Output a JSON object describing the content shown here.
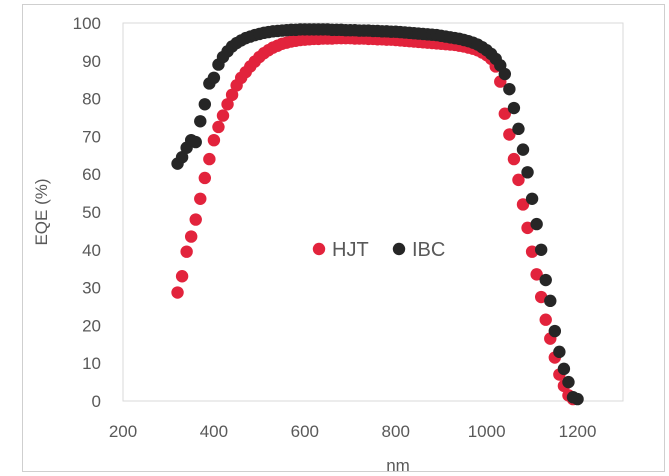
{
  "chart_data": {
    "type": "scatter",
    "title": "",
    "xlabel": "nm",
    "ylabel": "EQE (%)",
    "xlim": [
      200,
      1300
    ],
    "ylim": [
      0,
      100
    ],
    "xticks": [
      "200",
      "400",
      "600",
      "800",
      "1000",
      "1200"
    ],
    "yticks": [
      "0",
      "10",
      "20",
      "30",
      "40",
      "50",
      "60",
      "70",
      "80",
      "90",
      "100"
    ],
    "grid": false,
    "legend_position": "center",
    "series": [
      {
        "name": "HJT",
        "color": "#e2233c",
        "points": [
          [
            320,
            28.7
          ],
          [
            330,
            33
          ],
          [
            340,
            39.5
          ],
          [
            350,
            43.5
          ],
          [
            360,
            48
          ],
          [
            370,
            53.5
          ],
          [
            380,
            59
          ],
          [
            390,
            64
          ],
          [
            400,
            69
          ],
          [
            410,
            72.5
          ],
          [
            420,
            75.5
          ],
          [
            430,
            78.5
          ],
          [
            440,
            81
          ],
          [
            450,
            83.5
          ],
          [
            460,
            85.5
          ],
          [
            470,
            87
          ],
          [
            480,
            88.5
          ],
          [
            490,
            89.8
          ],
          [
            500,
            91
          ],
          [
            510,
            92
          ],
          [
            520,
            92.8
          ],
          [
            530,
            93.5
          ],
          [
            540,
            94
          ],
          [
            550,
            94.5
          ],
          [
            560,
            94.8
          ],
          [
            570,
            95.1
          ],
          [
            580,
            95.3
          ],
          [
            590,
            95.5
          ],
          [
            600,
            95.6
          ],
          [
            610,
            95.7
          ],
          [
            620,
            95.8
          ],
          [
            630,
            95.8
          ],
          [
            640,
            95.9
          ],
          [
            650,
            95.9
          ],
          [
            660,
            95.9
          ],
          [
            670,
            96
          ],
          [
            680,
            96
          ],
          [
            690,
            96
          ],
          [
            700,
            96
          ],
          [
            710,
            95.9
          ],
          [
            720,
            95.9
          ],
          [
            730,
            95.9
          ],
          [
            740,
            95.8
          ],
          [
            750,
            95.8
          ],
          [
            760,
            95.7
          ],
          [
            770,
            95.7
          ],
          [
            780,
            95.6
          ],
          [
            790,
            95.6
          ],
          [
            800,
            95.5
          ],
          [
            810,
            95.4
          ],
          [
            820,
            95.3
          ],
          [
            830,
            95.2
          ],
          [
            840,
            95.1
          ],
          [
            850,
            95
          ],
          [
            860,
            94.9
          ],
          [
            870,
            94.8
          ],
          [
            880,
            94.7
          ],
          [
            890,
            94.6
          ],
          [
            900,
            94.5
          ],
          [
            910,
            94.4
          ],
          [
            920,
            94.3
          ],
          [
            930,
            94.2
          ],
          [
            940,
            94
          ],
          [
            950,
            93.8
          ],
          [
            960,
            93.5
          ],
          [
            970,
            93.2
          ],
          [
            980,
            92.8
          ],
          [
            990,
            92.2
          ],
          [
            1000,
            91.5
          ],
          [
            1010,
            90.5
          ],
          [
            1020,
            88.5
          ],
          [
            1030,
            84.5
          ],
          [
            1040,
            76
          ],
          [
            1050,
            70.5
          ],
          [
            1060,
            64
          ],
          [
            1070,
            58.5
          ],
          [
            1080,
            52
          ],
          [
            1090,
            45.8
          ],
          [
            1100,
            39.5
          ],
          [
            1110,
            33.5
          ],
          [
            1120,
            27.5
          ],
          [
            1130,
            21.5
          ],
          [
            1140,
            16.5
          ],
          [
            1150,
            11.5
          ],
          [
            1160,
            7
          ],
          [
            1170,
            4
          ],
          [
            1180,
            1.5
          ],
          [
            1190,
            0.5
          ]
        ]
      },
      {
        "name": "IBC",
        "color": "#262626",
        "points": [
          [
            320,
            62.8
          ],
          [
            330,
            64.5
          ],
          [
            340,
            67
          ],
          [
            350,
            69
          ],
          [
            360,
            68.5
          ],
          [
            370,
            74
          ],
          [
            380,
            78.5
          ],
          [
            390,
            84
          ],
          [
            400,
            85.5
          ],
          [
            410,
            89
          ],
          [
            420,
            91
          ],
          [
            430,
            92.5
          ],
          [
            440,
            93.8
          ],
          [
            450,
            94.7
          ],
          [
            460,
            95.4
          ],
          [
            470,
            96
          ],
          [
            480,
            96.4
          ],
          [
            490,
            96.8
          ],
          [
            500,
            97.1
          ],
          [
            510,
            97.4
          ],
          [
            520,
            97.6
          ],
          [
            530,
            97.8
          ],
          [
            540,
            97.9
          ],
          [
            550,
            98
          ],
          [
            560,
            98.1
          ],
          [
            570,
            98.2
          ],
          [
            580,
            98.2
          ],
          [
            590,
            98.3
          ],
          [
            600,
            98.3
          ],
          [
            610,
            98.3
          ],
          [
            620,
            98.3
          ],
          [
            630,
            98.3
          ],
          [
            640,
            98.3
          ],
          [
            650,
            98.3
          ],
          [
            660,
            98.2
          ],
          [
            670,
            98.2
          ],
          [
            680,
            98.2
          ],
          [
            690,
            98.1
          ],
          [
            700,
            98.1
          ],
          [
            710,
            98.1
          ],
          [
            720,
            98
          ],
          [
            730,
            98
          ],
          [
            740,
            98
          ],
          [
            750,
            97.9
          ],
          [
            760,
            97.9
          ],
          [
            770,
            97.8
          ],
          [
            780,
            97.8
          ],
          [
            790,
            97.7
          ],
          [
            800,
            97.7
          ],
          [
            810,
            97.6
          ],
          [
            820,
            97.5
          ],
          [
            830,
            97.4
          ],
          [
            840,
            97.3
          ],
          [
            850,
            97.2
          ],
          [
            860,
            97.1
          ],
          [
            870,
            97
          ],
          [
            880,
            96.9
          ],
          [
            890,
            96.8
          ],
          [
            900,
            96.6
          ],
          [
            910,
            96.4
          ],
          [
            920,
            96.2
          ],
          [
            930,
            96
          ],
          [
            940,
            95.8
          ],
          [
            950,
            95.5
          ],
          [
            960,
            95.2
          ],
          [
            970,
            94.8
          ],
          [
            980,
            94.3
          ],
          [
            990,
            93.6
          ],
          [
            1000,
            92.8
          ],
          [
            1010,
            91.8
          ],
          [
            1020,
            90.5
          ],
          [
            1030,
            88.8
          ],
          [
            1040,
            86.5
          ],
          [
            1050,
            82.5
          ],
          [
            1060,
            77.5
          ],
          [
            1070,
            72
          ],
          [
            1080,
            66.5
          ],
          [
            1090,
            60.5
          ],
          [
            1100,
            53.5
          ],
          [
            1110,
            46.8
          ],
          [
            1120,
            40
          ],
          [
            1130,
            32
          ],
          [
            1140,
            26.5
          ],
          [
            1150,
            18.5
          ],
          [
            1160,
            13
          ],
          [
            1170,
            8.5
          ],
          [
            1180,
            5
          ],
          [
            1190,
            1
          ],
          [
            1200,
            0.5
          ]
        ]
      }
    ]
  }
}
